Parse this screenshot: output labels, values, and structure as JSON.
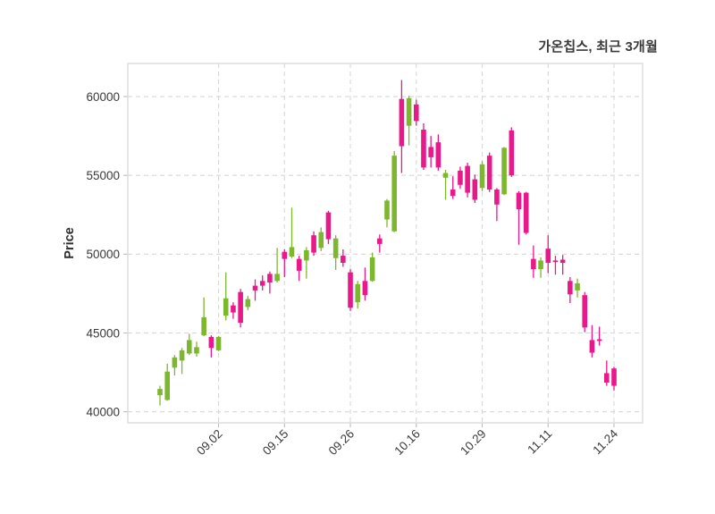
{
  "title": "가온칩스, 최근 3개월",
  "colors": {
    "background": "#FFFFFF",
    "up": "#7DB72F",
    "down": "#E8198B",
    "grid": "#D7D7D7",
    "frame": "#D9D9D9",
    "tick": "#BDBDBD",
    "text": "#3A3A3A"
  },
  "chart_data": {
    "type": "candlestick",
    "title": "가온칩스, 최근 3개월",
    "xlabel": "",
    "ylabel": "Price",
    "grid": true,
    "legend": "none",
    "ylim": [
      39300,
      62100
    ],
    "yticks": [
      40000,
      45000,
      50000,
      55000,
      60000
    ],
    "xtick_labels": [
      "09.02",
      "09.15",
      "09.26",
      "10.16",
      "10.29",
      "11.11",
      "11.24"
    ],
    "xtick_indices": [
      8,
      17,
      26,
      35,
      44,
      53,
      62
    ],
    "up_color": "#7DB72F",
    "down_color": "#E8198B",
    "ohlc_order": [
      "open",
      "high",
      "low",
      "close"
    ],
    "ohlc": [
      [
        41050,
        41650,
        40400,
        41450
      ],
      [
        40750,
        43050,
        40700,
        42550
      ],
      [
        42800,
        43600,
        42300,
        43450
      ],
      [
        43250,
        44050,
        42400,
        43900
      ],
      [
        43700,
        44950,
        43600,
        44550
      ],
      [
        43700,
        44450,
        43500,
        44100
      ],
      [
        44850,
        47250,
        44800,
        46000
      ],
      [
        44750,
        44850,
        43450,
        44050
      ],
      [
        43900,
        44800,
        43850,
        44750
      ],
      [
        46100,
        48850,
        45800,
        47200
      ],
      [
        46750,
        46950,
        45900,
        46300
      ],
      [
        47600,
        47800,
        45350,
        45650
      ],
      [
        46650,
        47350,
        46450,
        47150
      ],
      [
        48000,
        48400,
        47050,
        47700
      ],
      [
        48300,
        48650,
        47700,
        48000
      ],
      [
        48750,
        48900,
        47500,
        48200
      ],
      [
        48300,
        50400,
        48200,
        48750
      ],
      [
        50150,
        50300,
        48550,
        49700
      ],
      [
        49850,
        52950,
        49750,
        50450
      ],
      [
        49700,
        49900,
        48300,
        48950
      ],
      [
        49600,
        50450,
        48450,
        50250
      ],
      [
        51200,
        51450,
        49900,
        50100
      ],
      [
        50400,
        51700,
        50200,
        51400
      ],
      [
        52650,
        52750,
        50650,
        50950
      ],
      [
        49750,
        51200,
        49000,
        51000
      ],
      [
        49900,
        50300,
        49200,
        49450
      ],
      [
        48850,
        49050,
        46400,
        46600
      ],
      [
        46950,
        48300,
        46550,
        48100
      ],
      [
        48300,
        49150,
        47050,
        47400
      ],
      [
        48300,
        50100,
        48250,
        49800
      ],
      [
        51000,
        51250,
        50100,
        50650
      ],
      [
        52200,
        53500,
        51700,
        53400
      ],
      [
        51450,
        56550,
        51400,
        56250
      ],
      [
        59850,
        61050,
        55150,
        56850
      ],
      [
        58150,
        60050,
        56900,
        59900
      ],
      [
        59500,
        59800,
        58150,
        58450
      ],
      [
        57900,
        58300,
        55350,
        55500
      ],
      [
        56800,
        57500,
        55500,
        56150
      ],
      [
        57100,
        57600,
        55300,
        55500
      ],
      [
        54850,
        55350,
        53450,
        55150
      ],
      [
        54100,
        54950,
        53500,
        53700
      ],
      [
        55300,
        55550,
        54150,
        54400
      ],
      [
        55600,
        55800,
        53600,
        53900
      ],
      [
        54750,
        55050,
        53250,
        53450
      ],
      [
        54200,
        55900,
        54000,
        55700
      ],
      [
        56250,
        56450,
        53950,
        54100
      ],
      [
        54100,
        54200,
        52100,
        53150
      ],
      [
        53800,
        56800,
        53750,
        56750
      ],
      [
        57850,
        58050,
        54900,
        55000
      ],
      [
        53900,
        54000,
        50600,
        52850
      ],
      [
        53900,
        53950,
        51250,
        51350
      ],
      [
        49700,
        50550,
        48500,
        49050
      ],
      [
        49050,
        49800,
        48500,
        49600
      ],
      [
        50350,
        51200,
        48800,
        49450
      ],
      [
        49600,
        49900,
        48700,
        49500
      ],
      [
        49650,
        49950,
        48700,
        49450
      ],
      [
        48300,
        48550,
        46900,
        47450
      ],
      [
        47700,
        48450,
        47250,
        48150
      ],
      [
        47400,
        47600,
        45050,
        45350
      ],
      [
        44550,
        45500,
        43450,
        43750
      ],
      [
        44600,
        45400,
        44200,
        44500
      ],
      [
        42450,
        43250,
        41650,
        41850
      ],
      [
        42750,
        42850,
        41350,
        41650
      ]
    ]
  }
}
